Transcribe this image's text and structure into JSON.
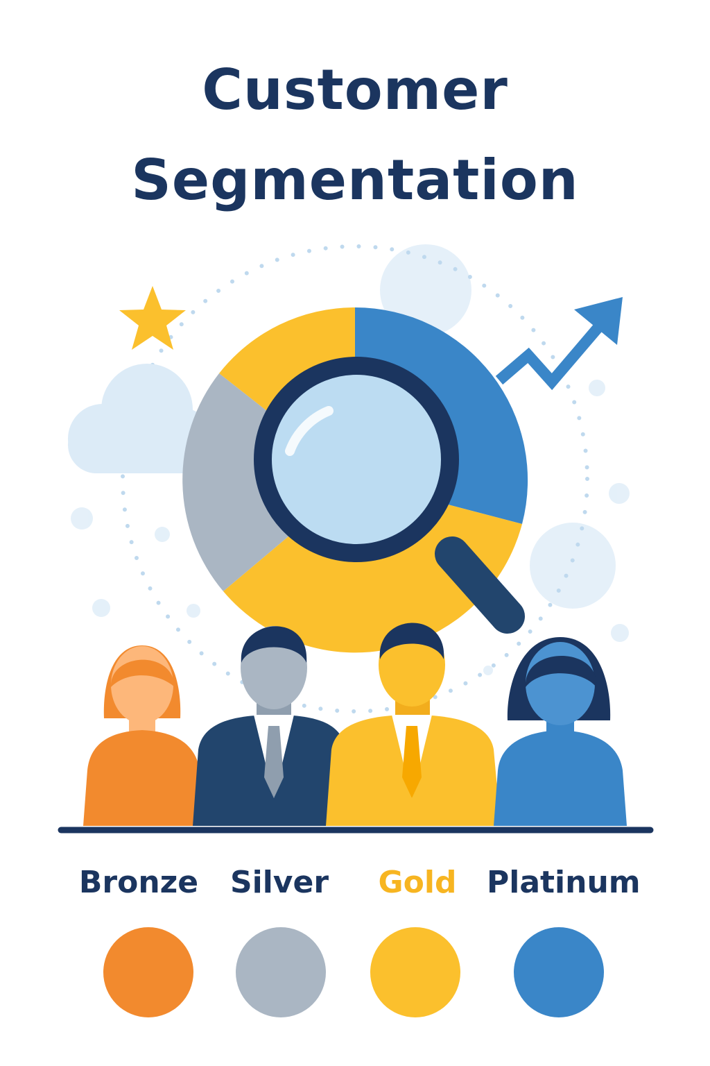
{
  "title": {
    "line1": "Customer",
    "line2": "Segmentation"
  },
  "icons": [
    "star-icon",
    "cloud-icon",
    "trend-up-arrow-icon",
    "magnifying-glass-icon",
    "pie-chart-icon",
    "person-icon"
  ],
  "colors": {
    "title": "#1b355f",
    "navy": "#1b355f",
    "bronze": "#f28a2e",
    "silver": "#aab6c3",
    "gold": "#fbc02d",
    "platinum": "#3a86c8",
    "light_blue": "#dcebf7"
  },
  "tiers": [
    {
      "label": "Bronze",
      "color": "#f28a2e",
      "label_color": "#1b355f"
    },
    {
      "label": "Silver",
      "color": "#aab6c3",
      "label_color": "#1b355f"
    },
    {
      "label": "Gold",
      "color": "#fbc02d",
      "label_color": "#f7b521"
    },
    {
      "label": "Platinum",
      "color": "#3a86c8",
      "label_color": "#1b355f"
    }
  ]
}
